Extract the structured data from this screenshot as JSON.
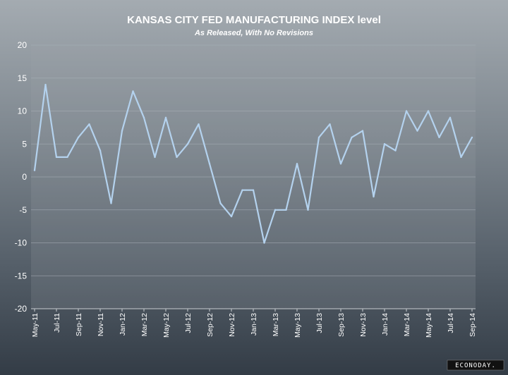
{
  "chart_data": {
    "type": "line",
    "title": "KANSAS CITY FED MANUFACTURING INDEX level",
    "subtitle": "As Released, With No Revisions",
    "xlabel": "",
    "ylabel": "",
    "ylim": [
      -20,
      20
    ],
    "yticks": [
      20,
      15,
      10,
      5,
      0,
      -5,
      -10,
      -15,
      -20
    ],
    "grid": true,
    "categories": [
      "May-11",
      "Jun-11",
      "Jul-11",
      "Aug-11",
      "Sep-11",
      "Oct-11",
      "Nov-11",
      "Dec-11",
      "Jan-12",
      "Feb-12",
      "Mar-12",
      "Apr-12",
      "May-12",
      "Jun-12",
      "Jul-12",
      "Aug-12",
      "Sep-12",
      "Oct-12",
      "Nov-12",
      "Dec-12",
      "Jan-13",
      "Feb-13",
      "Mar-13",
      "Apr-13",
      "May-13",
      "Jun-13",
      "Jul-13",
      "Aug-13",
      "Sep-13",
      "Oct-13",
      "Nov-13",
      "Dec-13",
      "Jan-14",
      "Feb-14",
      "Mar-14",
      "Apr-14",
      "May-14",
      "Jun-14",
      "Jul-14",
      "Aug-14",
      "Sep-14"
    ],
    "tick_labels": [
      "May-11",
      "Jul-11",
      "Sep-11",
      "Nov-11",
      "Jan-12",
      "Mar-12",
      "May-12",
      "Jul-12",
      "Sep-12",
      "Nov-12",
      "Jan-13",
      "Mar-13",
      "May-13",
      "Jul-13",
      "Sep-13",
      "Nov-13",
      "Jan-14",
      "Mar-14",
      "May-14",
      "Jul-14",
      "Sep-14"
    ],
    "values": [
      1,
      14,
      3,
      3,
      6,
      8,
      4,
      -4,
      7,
      13,
      9,
      3,
      9,
      3,
      5,
      8,
      2,
      -4,
      -6,
      -2,
      -2,
      -10,
      -5,
      -5,
      2,
      -5,
      6,
      8,
      2,
      6,
      7,
      -3,
      5,
      4,
      10,
      7,
      10,
      6,
      9,
      3,
      6
    ],
    "colors": {
      "line": "#b4d2ee",
      "grid": "#aab2b9",
      "axis": "#c8cdd2"
    }
  },
  "watermark": "ECONODAY."
}
